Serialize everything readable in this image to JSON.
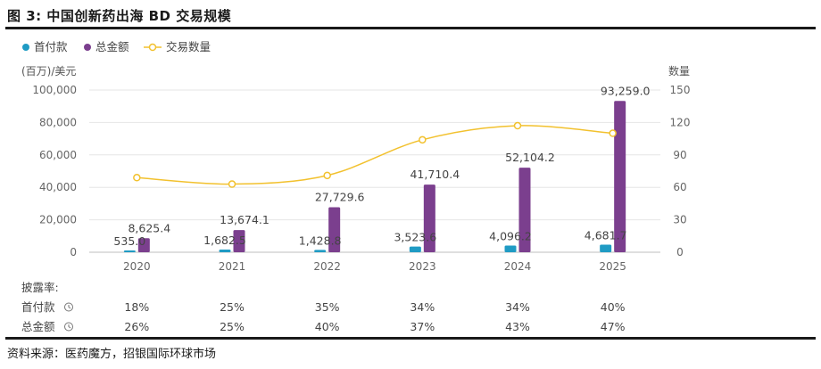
{
  "figure": {
    "title": "图 3: 中国创新药出海 BD 交易规模",
    "source": "资料来源：医药魔方，招银国际环球市场"
  },
  "chart_data": {
    "type": "bar",
    "categories": [
      "2020",
      "2021",
      "2022",
      "2023",
      "2024",
      "2025"
    ],
    "series": [
      {
        "name": "首付款",
        "kind": "bar",
        "axis": "left",
        "color": "#1f9bc4",
        "values": [
          535.0,
          1682.5,
          1428.8,
          3523.6,
          4096.2,
          4681.7
        ],
        "labels": [
          "535.0",
          "1,682.5",
          "1,428.8",
          "3,523.6",
          "4,096.2",
          "4,681.7"
        ]
      },
      {
        "name": "总金额",
        "kind": "bar",
        "axis": "left",
        "color": "#7b3f8e",
        "values": [
          8625.4,
          13674.1,
          27729.6,
          41710.4,
          52104.2,
          93259.0
        ],
        "labels": [
          "8,625.4",
          "13,674.1",
          "27,729.6",
          "41,710.4",
          "52,104.2",
          "93,259.0"
        ]
      },
      {
        "name": "交易数量",
        "kind": "line",
        "axis": "right",
        "color": "#f2c12e",
        "values": [
          69,
          63,
          71,
          104,
          117,
          110
        ]
      }
    ],
    "left_axis": {
      "unit": "(百万)/美元",
      "ylim": [
        0,
        100000
      ],
      "ticks": [
        "0",
        "20,000",
        "40,000",
        "60,000",
        "80,000",
        "100,000"
      ]
    },
    "right_axis": {
      "unit": "数量",
      "ylim": [
        0,
        150
      ],
      "ticks": [
        "0",
        "30",
        "60",
        "90",
        "120",
        "150"
      ]
    },
    "legend_position": "top-left",
    "grid": true,
    "disclosure_table": {
      "header": "披露率:",
      "rows": [
        {
          "label": "首付款",
          "values": [
            "18%",
            "25%",
            "35%",
            "34%",
            "34%",
            "40%"
          ]
        },
        {
          "label": "总金额",
          "values": [
            "26%",
            "25%",
            "40%",
            "37%",
            "43%",
            "47%"
          ]
        }
      ]
    }
  }
}
